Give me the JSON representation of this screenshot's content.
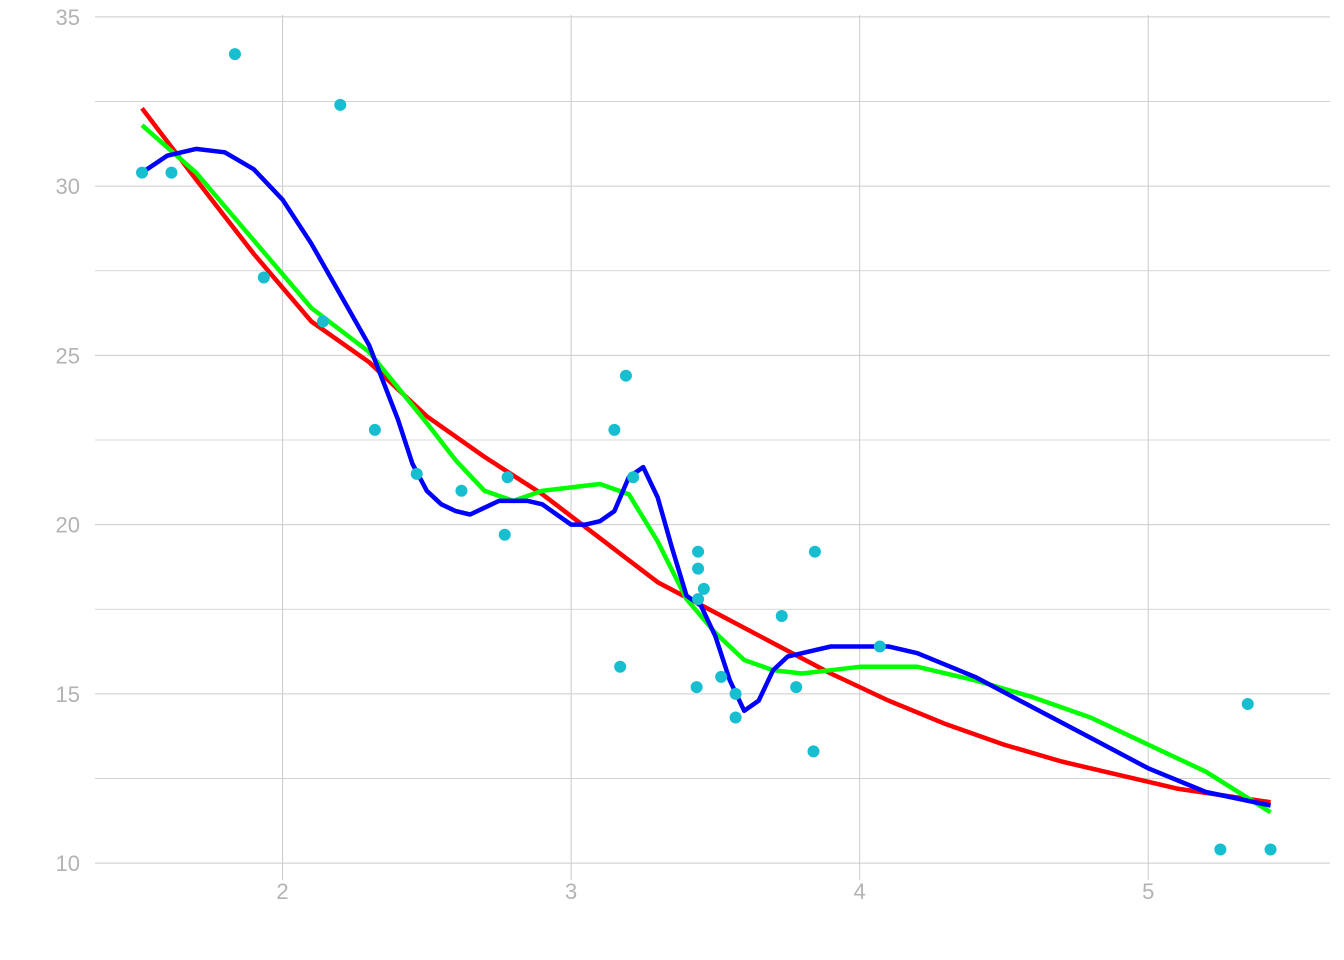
{
  "chart_data": {
    "type": "scatter",
    "title": "",
    "xlabel": "",
    "ylabel": "",
    "xlim": [
      1.35,
      5.63
    ],
    "ylim": [
      9.5,
      35
    ],
    "x_ticks": [
      2,
      3,
      4,
      5
    ],
    "x_tick_labels": [
      "2",
      "3",
      "4",
      "5"
    ],
    "y_ticks": [
      10,
      15,
      20,
      25,
      30,
      35
    ],
    "y_tick_labels": [
      "10",
      "15",
      "20",
      "25",
      "30",
      "35"
    ],
    "y_minor_gridlines": [
      12.5,
      17.5,
      22.5,
      27.5,
      32.5
    ],
    "grid": true,
    "colors": {
      "points": "#17becf",
      "red_curve": "#ff0000",
      "green_curve": "#00ff00",
      "blue_curve": "#0000ff",
      "grid": "#cccccc",
      "tick_label": "#b3b3b3"
    },
    "points": [
      {
        "x": 1.513,
        "y": 30.4
      },
      {
        "x": 1.615,
        "y": 30.4
      },
      {
        "x": 1.835,
        "y": 33.9
      },
      {
        "x": 1.935,
        "y": 27.3
      },
      {
        "x": 2.14,
        "y": 26.0
      },
      {
        "x": 2.2,
        "y": 32.4
      },
      {
        "x": 2.32,
        "y": 22.8
      },
      {
        "x": 2.465,
        "y": 21.5
      },
      {
        "x": 2.62,
        "y": 21.0
      },
      {
        "x": 2.77,
        "y": 19.7
      },
      {
        "x": 2.78,
        "y": 21.4
      },
      {
        "x": 3.15,
        "y": 22.8
      },
      {
        "x": 3.17,
        "y": 15.8
      },
      {
        "x": 3.19,
        "y": 24.4
      },
      {
        "x": 3.215,
        "y": 21.4
      },
      {
        "x": 3.435,
        "y": 15.2
      },
      {
        "x": 3.44,
        "y": 19.2
      },
      {
        "x": 3.44,
        "y": 18.7
      },
      {
        "x": 3.44,
        "y": 17.8
      },
      {
        "x": 3.46,
        "y": 18.1
      },
      {
        "x": 3.52,
        "y": 15.5
      },
      {
        "x": 3.57,
        "y": 15.0
      },
      {
        "x": 3.57,
        "y": 14.3
      },
      {
        "x": 3.73,
        "y": 17.3
      },
      {
        "x": 3.78,
        "y": 15.2
      },
      {
        "x": 3.84,
        "y": 13.3
      },
      {
        "x": 3.845,
        "y": 19.2
      },
      {
        "x": 4.07,
        "y": 16.4
      },
      {
        "x": 5.25,
        "y": 10.4
      },
      {
        "x": 5.345,
        "y": 14.7
      },
      {
        "x": 5.424,
        "y": 10.4
      }
    ],
    "series": [
      {
        "color": "#ff0000",
        "x": [
          1.513,
          1.7,
          1.9,
          2.1,
          2.3,
          2.5,
          2.7,
          2.9,
          3.1,
          3.3,
          3.5,
          3.7,
          3.9,
          4.1,
          4.3,
          4.5,
          4.7,
          4.9,
          5.1,
          5.3,
          5.424
        ],
        "y": [
          32.3,
          30.2,
          28.0,
          26.0,
          24.8,
          23.2,
          22.0,
          20.9,
          19.6,
          18.3,
          17.4,
          16.5,
          15.6,
          14.8,
          14.1,
          13.5,
          13.0,
          12.6,
          12.2,
          11.95,
          11.8
        ]
      },
      {
        "color": "#00ff00",
        "x": [
          1.513,
          1.7,
          1.9,
          2.1,
          2.3,
          2.5,
          2.6,
          2.7,
          2.8,
          2.9,
          3.0,
          3.1,
          3.2,
          3.3,
          3.4,
          3.5,
          3.6,
          3.7,
          3.8,
          3.9,
          4.0,
          4.2,
          4.4,
          4.6,
          4.8,
          5.0,
          5.2,
          5.424
        ],
        "y": [
          31.8,
          30.4,
          28.4,
          26.4,
          25.1,
          23.0,
          21.9,
          21.0,
          20.7,
          21.0,
          21.1,
          21.2,
          20.9,
          19.5,
          17.8,
          16.8,
          16.0,
          15.7,
          15.6,
          15.7,
          15.8,
          15.8,
          15.4,
          14.9,
          14.3,
          13.5,
          12.7,
          11.5
        ]
      },
      {
        "color": "#0000ff",
        "x": [
          1.513,
          1.6,
          1.7,
          1.8,
          1.9,
          2.0,
          2.1,
          2.2,
          2.3,
          2.4,
          2.45,
          2.5,
          2.55,
          2.6,
          2.65,
          2.7,
          2.75,
          2.8,
          2.85,
          2.9,
          2.95,
          3.0,
          3.05,
          3.1,
          3.15,
          3.2,
          3.25,
          3.3,
          3.35,
          3.4,
          3.45,
          3.5,
          3.55,
          3.6,
          3.65,
          3.7,
          3.75,
          3.8,
          3.9,
          4.0,
          4.1,
          4.2,
          4.4,
          4.6,
          4.8,
          5.0,
          5.2,
          5.424
        ],
        "y": [
          30.4,
          30.9,
          31.1,
          31.0,
          30.5,
          29.6,
          28.3,
          26.8,
          25.3,
          23.1,
          21.8,
          21.0,
          20.6,
          20.4,
          20.3,
          20.5,
          20.7,
          20.7,
          20.7,
          20.6,
          20.3,
          20.0,
          20.0,
          20.1,
          20.4,
          21.4,
          21.7,
          20.8,
          19.3,
          17.9,
          17.6,
          16.7,
          15.4,
          14.5,
          14.8,
          15.7,
          16.1,
          16.2,
          16.4,
          16.4,
          16.4,
          16.2,
          15.5,
          14.6,
          13.7,
          12.8,
          12.1,
          11.7
        ]
      }
    ]
  }
}
